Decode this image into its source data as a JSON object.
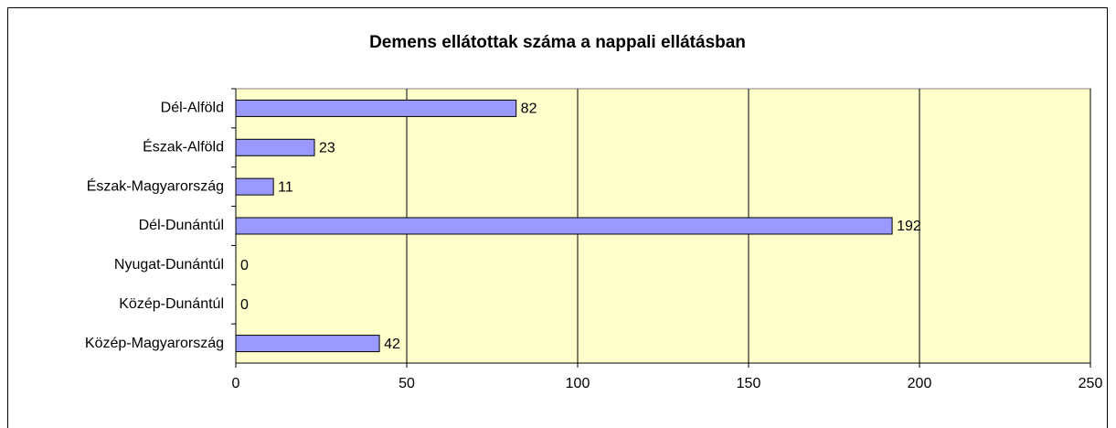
{
  "chart_data": {
    "type": "bar",
    "orientation": "horizontal",
    "title": "Demens ellátottak száma a nappali ellátásban",
    "categories": [
      "Dél-Alföld",
      "Észak-Alföld",
      "Észak-Magyarország",
      "Dél-Dunántúl",
      "Nyugat-Dunántúl",
      "Közép-Dunántúl",
      "Közép-Magyarország"
    ],
    "values": [
      82,
      23,
      11,
      192,
      0,
      0,
      42
    ],
    "color": "#9999ff",
    "xlim": [
      0,
      250
    ],
    "xticks": [
      0,
      50,
      100,
      150,
      200,
      250
    ],
    "grid": true
  }
}
